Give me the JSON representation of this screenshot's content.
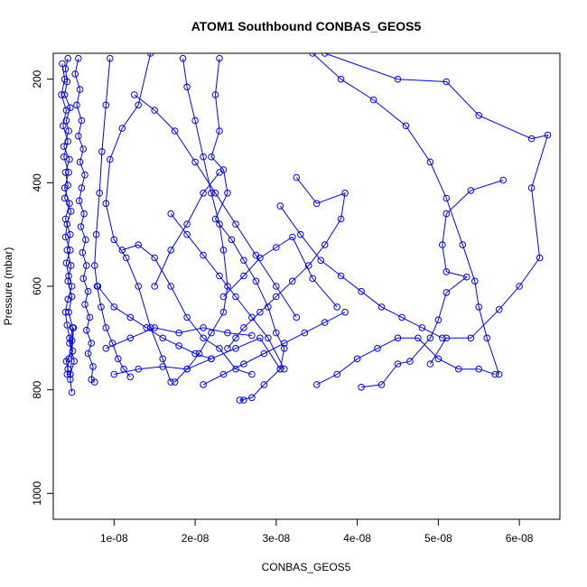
{
  "chart_data": {
    "type": "line",
    "title": "ATOM1 Southbound CONBAS_GEOS5",
    "xlabel": "CONBAS_GEOS5",
    "ylabel": "Pressure (mbar)",
    "xlim": [
      2.5e-09,
      6.5e-08
    ],
    "ylim": [
      1050,
      150
    ],
    "y_reversed": true,
    "x_ticks": [
      {
        "value": 1e-08,
        "label": "1e-08"
      },
      {
        "value": 2e-08,
        "label": "2e-08"
      },
      {
        "value": 3e-08,
        "label": "3e-08"
      },
      {
        "value": 4e-08,
        "label": "4e-08"
      },
      {
        "value": 5e-08,
        "label": "5e-08"
      },
      {
        "value": 6e-08,
        "label": "6e-08"
      }
    ],
    "y_ticks": [
      {
        "value": 200,
        "label": "200"
      },
      {
        "value": 400,
        "label": "400"
      },
      {
        "value": 600,
        "label": "600"
      },
      {
        "value": 800,
        "label": "800"
      },
      {
        "value": 1000,
        "label": "1000"
      }
    ],
    "grid": false,
    "color": "#0000ff",
    "series": [
      {
        "x": [
          4.3e-09,
          4e-09,
          4.2e-09,
          3.9e-09,
          4.6e-09,
          4.1e-09,
          4.4e-09,
          3.8e-09,
          4.5e-09,
          4e-09,
          4.3e-09,
          3.9e-09,
          4.7e-09,
          4.2e-09,
          4e-09,
          4.6e-09,
          4.1e-09,
          4.4e-09,
          4.8e-09,
          4.3e-09,
          4e-09,
          4.2e-09,
          4.5e-09,
          4.9e-09,
          4.1e-09,
          4.3e-09,
          4.6e-09,
          4.2e-09,
          4.4e-09,
          4.8e-09,
          5e-09,
          4.6e-09,
          4.8e-09
        ],
        "y": [
          160,
          180,
          205,
          230,
          255,
          280,
          300,
          330,
          355,
          380,
          405,
          430,
          455,
          480,
          505,
          530,
          555,
          580,
          600,
          625,
          650,
          675,
          700,
          725,
          745,
          760,
          770,
          770,
          740,
          705,
          680,
          780,
          805
        ]
      },
      {
        "x": [
          5.6e-09,
          5.2e-09,
          5.8e-09,
          5.4e-09,
          6e-09,
          5.6e-09,
          6.2e-09,
          5.8e-09,
          6.4e-09,
          6e-09,
          5.7e-09,
          6.3e-09,
          5.9e-09,
          6.5e-09,
          6.1e-09,
          6.6e-09,
          6.2e-09,
          6.8e-09,
          6.4e-09,
          7e-09,
          6.6e-09,
          7.2e-09,
          6.8e-09,
          7.4e-09,
          7.2e-09,
          7.6e-09
        ],
        "y": [
          160,
          190,
          220,
          250,
          280,
          310,
          335,
          360,
          385,
          410,
          435,
          460,
          485,
          510,
          535,
          560,
          585,
          610,
          635,
          660,
          685,
          710,
          730,
          755,
          780,
          785
        ]
      },
      {
        "x": [
          3.6e-09,
          3.9e-09,
          3.5e-09,
          4.1e-09,
          3.7e-09,
          4.3e-09,
          3.8e-09,
          4.4e-09,
          3.9e-09,
          4.5e-09,
          4e-09,
          4.6e-09,
          4.2e-09,
          4.7e-09,
          4.3e-09,
          4.8e-09,
          4.4e-09,
          4.9e-09,
          4.5e-09,
          5.1e-09,
          4.6e-09
        ],
        "y": [
          170,
          200,
          230,
          260,
          290,
          320,
          350,
          380,
          410,
          440,
          470,
          500,
          530,
          560,
          590,
          620,
          650,
          680,
          710,
          745,
          770
        ]
      },
      {
        "x": [
          9.5e-09,
          9e-09,
          8.5e-09,
          8.2e-09,
          7.8e-09,
          7.6e-09,
          7.9e-09,
          8.4e-09,
          9e-09,
          9.8e-09,
          1.05e-08,
          1.12e-08,
          1.2e-08
        ],
        "y": [
          160,
          250,
          340,
          420,
          500,
          560,
          600,
          640,
          680,
          710,
          740,
          760,
          775
        ]
      },
      {
        "x": [
          1.45e-08,
          1.3e-08,
          1.1e-08,
          9.5e-09,
          9e-09,
          1e-08,
          1.15e-08,
          1.3e-08,
          1.45e-08,
          1.6e-08,
          1.7e-08
        ],
        "y": [
          150,
          250,
          295,
          355,
          440,
          510,
          545,
          600,
          680,
          740,
          785
        ]
      },
      {
        "x": [
          1.85e-08,
          1.9e-08,
          2e-08,
          2.1e-08,
          2.2e-08,
          2.3e-08,
          2.35e-08,
          2.4e-08,
          2.35e-08,
          2.2e-08,
          2.05e-08,
          1.9e-08,
          1.75e-08
        ],
        "y": [
          160,
          215,
          280,
          350,
          420,
          480,
          530,
          600,
          650,
          690,
          730,
          760,
          785
        ]
      },
      {
        "x": [
          2.3e-08,
          2.25e-08,
          2.3e-08,
          2.2e-08,
          2.35e-08,
          2.4e-08,
          2.25e-08,
          2.45e-08,
          2.6e-08,
          2.75e-08,
          2.9e-08,
          3e-08,
          3.1e-08,
          3.05e-08,
          2.85e-08,
          2.7e-08,
          2.55e-08,
          2.6e-08
        ],
        "y": [
          160,
          230,
          300,
          350,
          375,
          420,
          470,
          510,
          550,
          590,
          640,
          690,
          720,
          760,
          790,
          815,
          820,
          820
        ]
      },
      {
        "x": [
          3.45e-08,
          3.8e-08,
          4.2e-08,
          4.6e-08,
          4.9e-08,
          5.1e-08,
          5.3e-08,
          5.45e-08,
          5.5e-08,
          5.6e-08,
          5.75e-08
        ],
        "y": [
          150,
          200,
          240,
          290,
          360,
          430,
          520,
          590,
          640,
          700,
          770
        ]
      },
      {
        "x": [
          3.6e-08,
          4.5e-08,
          5.1e-08,
          5.5e-08,
          6.15e-08,
          6.35e-08,
          6.15e-08,
          6.25e-08,
          6e-08,
          5.75e-08,
          5.4e-08,
          5.1e-08,
          4.9e-08
        ],
        "y": [
          150,
          200,
          205,
          270,
          315,
          308,
          410,
          545,
          600,
          645,
          700,
          700,
          750
        ]
      },
      {
        "x": [
          5.8e-08,
          5.4e-08,
          5.1e-08,
          5.05e-08,
          5.1e-08,
          5.35e-08,
          5.1e-08,
          5e-08,
          4.9e-08,
          4.65e-08,
          4.5e-08,
          4.3e-08,
          4.05e-08
        ],
        "y": [
          395,
          415,
          460,
          520,
          572,
          582,
          612,
          665,
          700,
          745,
          750,
          790,
          795
        ]
      },
      {
        "x": [
          3.25e-08,
          3.5e-08,
          3.85e-08,
          3.8e-08,
          3.6e-08,
          3.4e-08,
          3.2e-08,
          3e-08,
          2.8e-08,
          2.6e-08,
          2.5e-08,
          2.4e-08
        ],
        "y": [
          390,
          440,
          420,
          470,
          520,
          560,
          590,
          620,
          650,
          680,
          700,
          720
        ]
      },
      {
        "x": [
          3.05e-08,
          3.3e-08,
          3.55e-08,
          3.8e-08,
          4.05e-08,
          4.3e-08,
          4.55e-08,
          4.8e-08,
          5.05e-08
        ],
        "y": [
          445,
          500,
          550,
          580,
          610,
          640,
          660,
          680,
          700
        ]
      },
      {
        "x": [
          1.25e-08,
          1.5e-08,
          1.75e-08,
          2e-08,
          2.25e-08,
          2.5e-08,
          2.75e-08,
          3e-08,
          3.25e-08
        ],
        "y": [
          230,
          260,
          300,
          360,
          420,
          480,
          540,
          600,
          660
        ]
      },
      {
        "x": [
          2.1e-08,
          2.35e-08,
          2.6e-08,
          2.85e-08,
          3.1e-08,
          3.35e-08,
          3.6e-08,
          3.85e-08
        ],
        "y": [
          790,
          770,
          750,
          730,
          710,
          690,
          670,
          650
        ]
      },
      {
        "x": [
          3.5e-08,
          3.75e-08,
          4e-08,
          4.25e-08,
          4.5e-08,
          4.75e-08,
          5e-08,
          5.25e-08,
          5.5e-08,
          5.7e-08
        ],
        "y": [
          790,
          770,
          740,
          720,
          700,
          700,
          740,
          760,
          760,
          770
        ]
      },
      {
        "x": [
          1.7e-08,
          1.9e-08,
          2.1e-08,
          2.3e-08,
          2.5e-08,
          2.7e-08,
          2.9e-08,
          3.1e-08
        ],
        "y": [
          460,
          500,
          540,
          580,
          620,
          660,
          700,
          760
        ]
      },
      {
        "x": [
          1.1e-08,
          1.3e-08,
          1.5e-08,
          1.7e-08,
          1.9e-08,
          2.1e-08,
          2.3e-08,
          2.5e-08,
          2.7e-08
        ],
        "y": [
          530,
          520,
          545,
          600,
          660,
          700,
          720,
          760,
          770
        ]
      },
      {
        "x": [
          8e-09,
          1e-08,
          1.2e-08,
          1.4e-08,
          1.6e-08,
          1.8e-08,
          2e-08,
          2.2e-08
        ],
        "y": [
          600,
          640,
          660,
          680,
          700,
          715,
          730,
          740
        ]
      },
      {
        "x": [
          9e-09,
          1.2e-08,
          1.5e-08,
          1.8e-08,
          2.1e-08,
          2.4e-08,
          2.7e-08
        ],
        "y": [
          720,
          700,
          680,
          690,
          680,
          690,
          695
        ]
      },
      {
        "x": [
          1e-08,
          1.3e-08,
          1.6e-08,
          1.9e-08,
          2.2e-08,
          2.5e-08,
          2.8e-08,
          3.05e-08
        ],
        "y": [
          770,
          760,
          755,
          760,
          740,
          720,
          700,
          760
        ]
      },
      {
        "x": [
          1.5e-08,
          1.7e-08,
          1.9e-08,
          2.1e-08,
          2.3e-08
        ],
        "y": [
          600,
          530,
          480,
          420,
          380
        ]
      },
      {
        "x": [
          2.35e-08,
          2.6e-08,
          2.8e-08,
          3e-08,
          3.2e-08,
          3.45e-08,
          3.75e-08
        ],
        "y": [
          620,
          580,
          545,
          525,
          505,
          585,
          640
        ]
      }
    ]
  }
}
